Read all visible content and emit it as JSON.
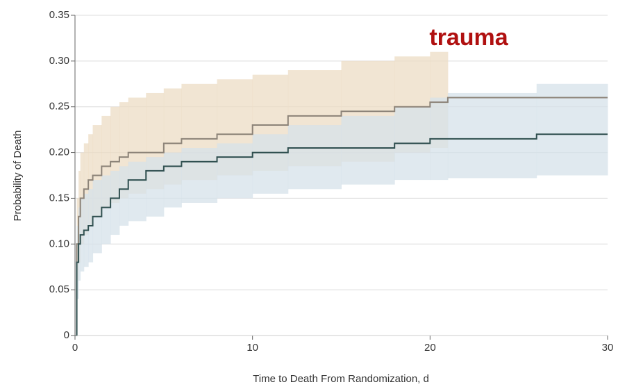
{
  "chart_data": {
    "type": "step",
    "annotation": "trauma",
    "x_label": "Time to Death From Randomization, d",
    "y_label": "Probability of Death",
    "x": [
      0,
      0.1,
      0.2,
      0.3,
      0.5,
      0.75,
      1,
      1.5,
      2,
      2.5,
      3,
      4,
      5,
      6,
      8,
      10,
      12,
      15,
      18,
      20,
      21,
      26,
      30
    ],
    "series": [
      {
        "color": "#8c8378",
        "band_color": "#ecdcc4",
        "values": [
          0,
          0.1,
          0.13,
          0.15,
          0.16,
          0.17,
          0.175,
          0.185,
          0.19,
          0.195,
          0.2,
          0.2,
          0.21,
          0.215,
          0.22,
          0.23,
          0.24,
          0.245,
          0.25,
          0.255,
          0.26,
          0.26,
          0.26
        ],
        "lower": [
          0,
          0.06,
          0.08,
          0.1,
          0.11,
          0.12,
          0.13,
          0.14,
          0.145,
          0.15,
          0.155,
          0.16,
          0.165,
          0.17,
          0.175,
          0.18,
          0.185,
          0.19,
          0.2,
          0.205,
          null,
          null,
          null
        ],
        "upper": [
          0,
          0.15,
          0.18,
          0.2,
          0.21,
          0.22,
          0.23,
          0.24,
          0.25,
          0.255,
          0.26,
          0.265,
          0.27,
          0.275,
          0.28,
          0.285,
          0.29,
          0.3,
          0.305,
          0.31,
          null,
          null,
          null
        ]
      },
      {
        "color": "#2f4f4f",
        "band_color": "#d5e1e9",
        "values": [
          0,
          0.08,
          0.1,
          0.11,
          0.115,
          0.12,
          0.13,
          0.14,
          0.15,
          0.16,
          0.17,
          0.18,
          0.185,
          0.19,
          0.195,
          0.2,
          0.205,
          0.205,
          0.21,
          0.215,
          0.215,
          0.22,
          0.22
        ],
        "lower": [
          0,
          0.04,
          0.06,
          0.07,
          0.075,
          0.08,
          0.09,
          0.1,
          0.11,
          0.12,
          0.125,
          0.13,
          0.14,
          0.145,
          0.15,
          0.155,
          0.16,
          0.165,
          0.17,
          0.17,
          0.172,
          0.175,
          null
        ],
        "upper": [
          0,
          0.12,
          0.14,
          0.15,
          0.155,
          0.16,
          0.17,
          0.175,
          0.18,
          0.185,
          0.19,
          0.195,
          0.2,
          0.205,
          0.21,
          0.22,
          0.23,
          0.24,
          0.25,
          0.26,
          0.265,
          0.275,
          null
        ]
      }
    ],
    "xlim": [
      0,
      30
    ],
    "xticks": [
      0,
      10,
      20,
      30
    ],
    "ylim": [
      0,
      0.35
    ],
    "yticks": [
      0,
      0.05,
      {
        "value": 0.1,
        "label": "0.10"
      },
      0.15,
      {
        "value": 0.2,
        "label": "0.20"
      },
      0.25,
      {
        "value": 0.3,
        "label": "0.30"
      },
      0.35
    ],
    "grid": true
  }
}
